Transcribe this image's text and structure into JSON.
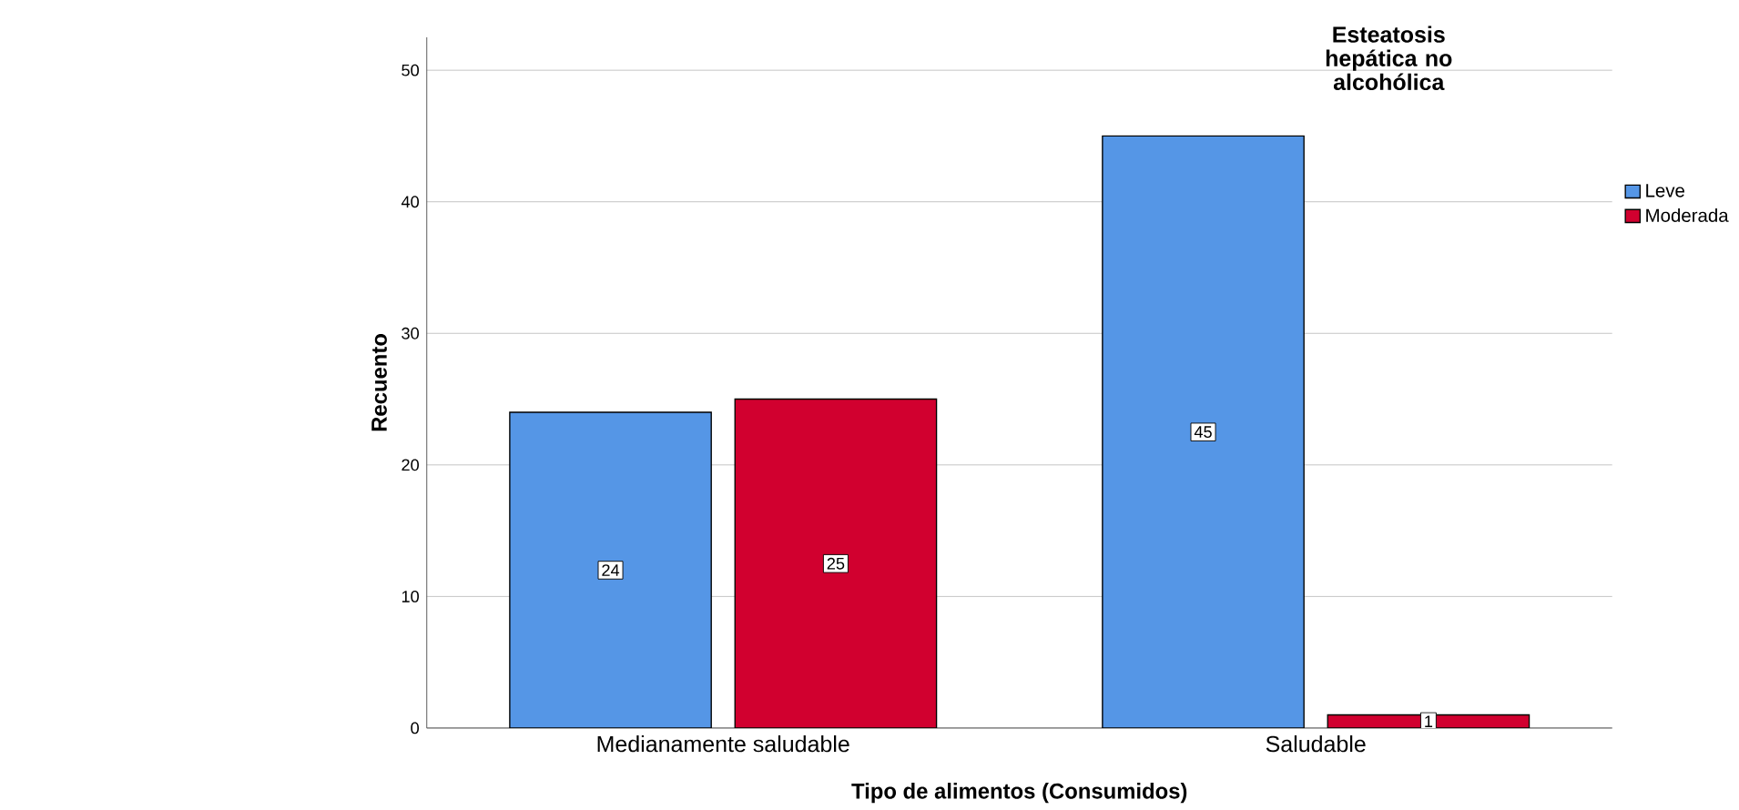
{
  "chart_data": {
    "type": "bar",
    "xlabel": "Tipo de alimentos (Consumidos)",
    "ylabel": "Recuento",
    "legend_title": "Esteatosis hepática no alcohólica",
    "categories": [
      "Medianamente saludable",
      "Saludable"
    ],
    "series": [
      {
        "name": "Leve",
        "color": "#5596e6",
        "values": [
          24,
          45
        ]
      },
      {
        "name": "Moderada",
        "color": "#d1002f",
        "values": [
          25,
          1
        ]
      }
    ],
    "ylim": [
      0,
      52.5
    ],
    "yticks": [
      0,
      10,
      20,
      30,
      40,
      50
    ],
    "grid": "y",
    "legend": "top right",
    "data_labels": true
  }
}
